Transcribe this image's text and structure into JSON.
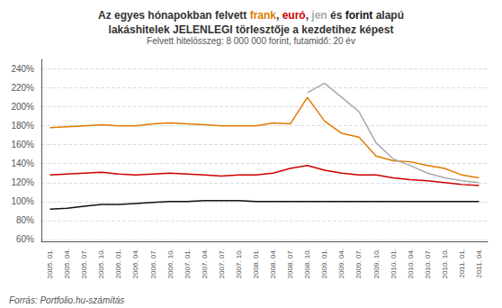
{
  "chart_data": {
    "type": "line",
    "title": "Az egyes hónapokban felvett frank, euró, jen és forint alapú\nlakáshitelek JELENLEGI törlesztője a kezdetihez képest",
    "subtitle": "Felvett hitelösszeg: 8 000 000 forint, futamidő: 20 év",
    "annotations": [
      "Forrás: Portfolio.hu-számítás"
    ],
    "categories": [
      "2005. 01.",
      "2005. 04.",
      "2005. 07.",
      "2005. 10.",
      "2006. 01.",
      "2006. 04.",
      "2006. 07.",
      "2006. 10.",
      "2007. 01.",
      "2007. 04.",
      "2007. 07.",
      "2007. 10.",
      "2008. 01.",
      "2008. 04.",
      "2008. 07.",
      "2008. 10.",
      "2009. 01.",
      "2009. 04.",
      "2009. 07.",
      "2009. 10.",
      "2010. 01.",
      "2010. 04.",
      "2010. 07.",
      "2010. 10.",
      "2011. 01.",
      "2011. 04."
    ],
    "series": [
      {
        "name": "frank",
        "color": "#e07b00",
        "values": [
          1.78,
          1.79,
          1.8,
          1.81,
          1.8,
          1.8,
          1.82,
          1.83,
          1.82,
          1.81,
          1.8,
          1.8,
          1.8,
          1.83,
          1.82,
          2.1,
          1.85,
          1.72,
          1.68,
          1.48,
          1.43,
          1.42,
          1.38,
          1.35,
          1.28,
          1.25
        ]
      },
      {
        "name": "euró",
        "color": "#cc0000",
        "values": [
          1.28,
          1.29,
          1.3,
          1.31,
          1.29,
          1.28,
          1.29,
          1.3,
          1.29,
          1.28,
          1.27,
          1.28,
          1.28,
          1.3,
          1.35,
          1.38,
          1.33,
          1.3,
          1.28,
          1.28,
          1.25,
          1.23,
          1.22,
          1.2,
          1.18,
          1.17
        ]
      },
      {
        "name": "jen",
        "color": "#aaaaaa",
        "values": [
          null,
          null,
          null,
          null,
          null,
          null,
          null,
          null,
          null,
          null,
          null,
          null,
          null,
          null,
          null,
          2.15,
          2.25,
          2.1,
          1.95,
          1.62,
          1.45,
          1.38,
          1.3,
          1.25,
          1.22,
          1.2
        ]
      },
      {
        "name": "forint",
        "color": "#111111",
        "values": [
          0.92,
          0.93,
          0.95,
          0.97,
          0.97,
          0.98,
          0.99,
          1.0,
          1.0,
          1.01,
          1.01,
          1.01,
          1.0,
          1.0,
          1.0,
          1.0,
          1.0,
          1.0,
          1.0,
          1.0,
          1.0,
          1.0,
          1.0,
          1.0,
          1.0,
          1.0
        ]
      }
    ],
    "ylim": [
      0.58,
      2.5
    ],
    "yticks": [
      {
        "value": 0.6,
        "label": "60%"
      },
      {
        "value": 0.8,
        "label": "80%"
      },
      {
        "value": 1.0,
        "label": "100%"
      },
      {
        "value": 1.2,
        "label": "120%"
      },
      {
        "value": 1.4,
        "label": "140%"
      },
      {
        "value": 1.6,
        "label": "160%"
      },
      {
        "value": 1.8,
        "label": "180%"
      },
      {
        "value": 2.0,
        "label": "200%"
      },
      {
        "value": 2.2,
        "label": "220%"
      },
      {
        "value": 2.4,
        "label": "240%"
      }
    ],
    "grid": true
  }
}
